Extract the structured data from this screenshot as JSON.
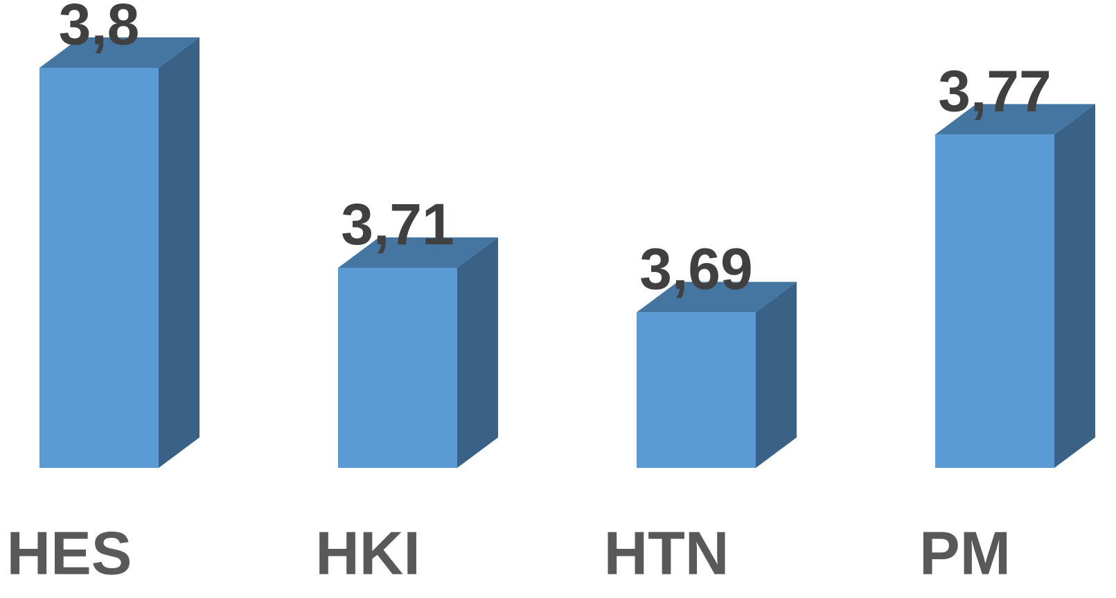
{
  "chart_data": {
    "type": "bar3d",
    "categories": [
      "HES",
      "HKI",
      "HTN",
      "PM"
    ],
    "values": [
      3.8,
      3.71,
      3.69,
      3.77
    ],
    "value_labels": [
      "3,8",
      "3,71",
      "3,69",
      "3,77"
    ],
    "color": "#5b9bd5",
    "ylim": [
      3.62,
      3.8
    ]
  }
}
